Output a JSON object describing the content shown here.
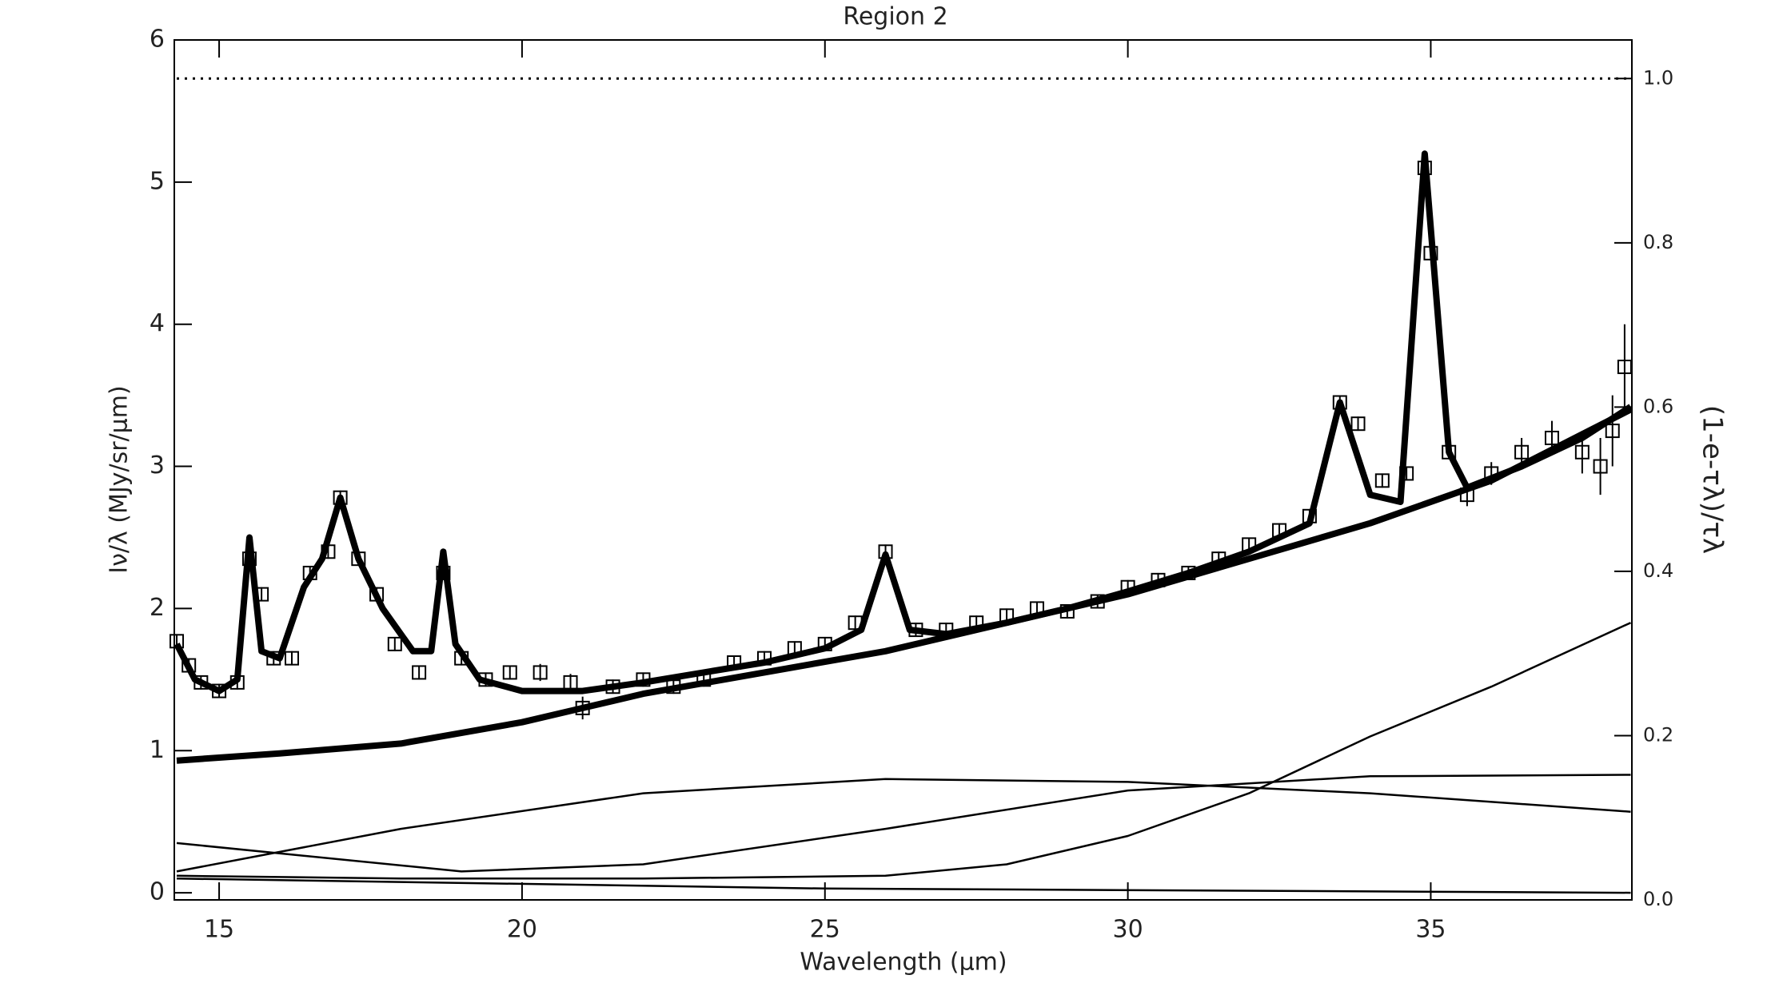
{
  "chart_data": {
    "type": "line",
    "title": "Region 2",
    "x_label": "Wavelength (μm)",
    "y_label": "Iν/λ (MJy/sr/μm)",
    "y2_label": "(1-e-τλ)/τλ",
    "xlim": [
      14.26,
      38.32
    ],
    "ylim": [
      -0.05,
      6
    ],
    "y2lim": [
      0,
      1.047
    ],
    "xticks": [
      15,
      20,
      25,
      30,
      35
    ],
    "yticks": [
      0,
      1,
      2,
      3,
      4,
      5,
      6
    ],
    "y2ticks": [
      {
        "value": 0,
        "label": "0.0"
      },
      0.2,
      0.4,
      0.6,
      0.8,
      {
        "value": 1,
        "label": "1.0"
      }
    ],
    "color": "#000000",
    "series": [
      {
        "line_style": "points",
        "x": [
          14.3,
          14.5,
          14.7,
          15.0,
          15.3,
          15.5,
          15.7,
          15.9,
          16.2,
          16.5,
          16.8,
          17.0,
          17.3,
          17.6,
          17.9,
          18.3,
          18.7,
          19.0,
          19.4,
          19.8,
          20.3,
          20.8,
          21.0,
          21.5,
          22.0,
          22.5,
          23.0,
          23.5,
          24.0,
          24.5,
          25.0,
          25.5,
          26.0,
          26.5,
          27.0,
          27.5,
          28.0,
          28.5,
          29.0,
          29.5,
          30.0,
          30.5,
          31.0,
          31.5,
          32.0,
          32.5,
          33.0,
          33.5,
          33.8,
          34.2,
          34.6,
          34.9,
          35.0,
          35.3,
          35.6,
          36.0,
          36.5,
          37.0,
          37.5,
          37.8,
          38.0,
          38.2
        ],
        "values": [
          1.77,
          1.6,
          1.48,
          1.42,
          1.48,
          2.35,
          2.1,
          1.65,
          1.65,
          2.25,
          2.4,
          2.78,
          2.35,
          2.1,
          1.75,
          1.55,
          2.25,
          1.65,
          1.5,
          1.55,
          1.55,
          1.48,
          1.3,
          1.45,
          1.5,
          1.45,
          1.5,
          1.62,
          1.65,
          1.72,
          1.75,
          1.9,
          2.4,
          1.85,
          1.85,
          1.9,
          1.95,
          2.0,
          1.98,
          2.05,
          2.15,
          2.2,
          2.25,
          2.35,
          2.45,
          2.55,
          2.65,
          3.45,
          3.3,
          2.9,
          2.95,
          5.1,
          4.5,
          3.1,
          2.8,
          2.95,
          3.1,
          3.2,
          3.1,
          3.0,
          3.25,
          3.7
        ],
        "errors": [
          0.05,
          0.05,
          0.05,
          0.05,
          0.05,
          0.05,
          0.05,
          0.05,
          0.05,
          0.05,
          0.05,
          0.05,
          0.05,
          0.05,
          0.05,
          0.05,
          0.05,
          0.05,
          0.05,
          0.05,
          0.06,
          0.06,
          0.08,
          0.05,
          0.05,
          0.05,
          0.05,
          0.05,
          0.05,
          0.05,
          0.05,
          0.05,
          0.05,
          0.05,
          0.05,
          0.05,
          0.05,
          0.05,
          0.05,
          0.05,
          0.05,
          0.05,
          0.05,
          0.05,
          0.05,
          0.05,
          0.05,
          0.05,
          0.05,
          0.05,
          0.05,
          0.05,
          0.05,
          0.05,
          0.08,
          0.08,
          0.1,
          0.12,
          0.15,
          0.2,
          0.25,
          0.3
        ]
      },
      {
        "line_style": "thick",
        "x": [
          14.3,
          14.6,
          15.0,
          15.3,
          15.5,
          15.7,
          16.0,
          16.4,
          16.7,
          17.0,
          17.3,
          17.7,
          18.2,
          18.5,
          18.7,
          18.9,
          19.3,
          20.0,
          21.0,
          22.0,
          23.0,
          24.0,
          25.0,
          25.6,
          26.0,
          26.4,
          27.0,
          28.0,
          29.0,
          30.0,
          31.0,
          32.0,
          33.0,
          33.5,
          34.0,
          34.5,
          34.9,
          35.3,
          35.6,
          36.5,
          37.5,
          38.3
        ],
        "values": [
          1.75,
          1.5,
          1.42,
          1.5,
          2.5,
          1.7,
          1.65,
          2.15,
          2.35,
          2.78,
          2.35,
          2.0,
          1.7,
          1.7,
          2.4,
          1.75,
          1.5,
          1.42,
          1.42,
          1.48,
          1.55,
          1.62,
          1.72,
          1.85,
          2.38,
          1.85,
          1.82,
          1.9,
          2.0,
          2.12,
          2.25,
          2.4,
          2.6,
          3.45,
          2.8,
          2.75,
          5.2,
          3.1,
          2.85,
          3.0,
          3.2,
          3.42
        ]
      },
      {
        "line_style": "thick",
        "x": [
          14.3,
          16,
          18,
          20,
          22,
          24,
          26,
          28,
          30,
          32,
          34,
          36,
          38.3
        ],
        "values": [
          0.93,
          0.98,
          1.05,
          1.2,
          1.4,
          1.55,
          1.7,
          1.9,
          2.1,
          2.35,
          2.6,
          2.9,
          3.4
        ]
      },
      {
        "line_style": "thin",
        "x": [
          14.3,
          18,
          22,
          26,
          28,
          30,
          32,
          34,
          36,
          38.3
        ],
        "values": [
          0.12,
          0.1,
          0.1,
          0.12,
          0.2,
          0.4,
          0.7,
          1.1,
          1.45,
          1.9
        ]
      },
      {
        "line_style": "thin",
        "x": [
          14.3,
          18,
          22,
          26,
          30,
          34,
          38.3
        ],
        "values": [
          0.15,
          0.45,
          0.7,
          0.8,
          0.78,
          0.7,
          0.57
        ]
      },
      {
        "line_style": "thin",
        "x": [
          14.3,
          19,
          22,
          26,
          30,
          34,
          38.3
        ],
        "values": [
          0.35,
          0.15,
          0.2,
          0.45,
          0.72,
          0.82,
          0.83
        ]
      },
      {
        "line_style": "thin",
        "x": [
          14.3,
          25,
          38.3
        ],
        "values": [
          0.1,
          0.03,
          0.0
        ]
      },
      {
        "line_style": "dotted",
        "axis": "y2",
        "x": [
          14.3,
          38.3
        ],
        "values": [
          1.0,
          1.0
        ]
      }
    ]
  }
}
